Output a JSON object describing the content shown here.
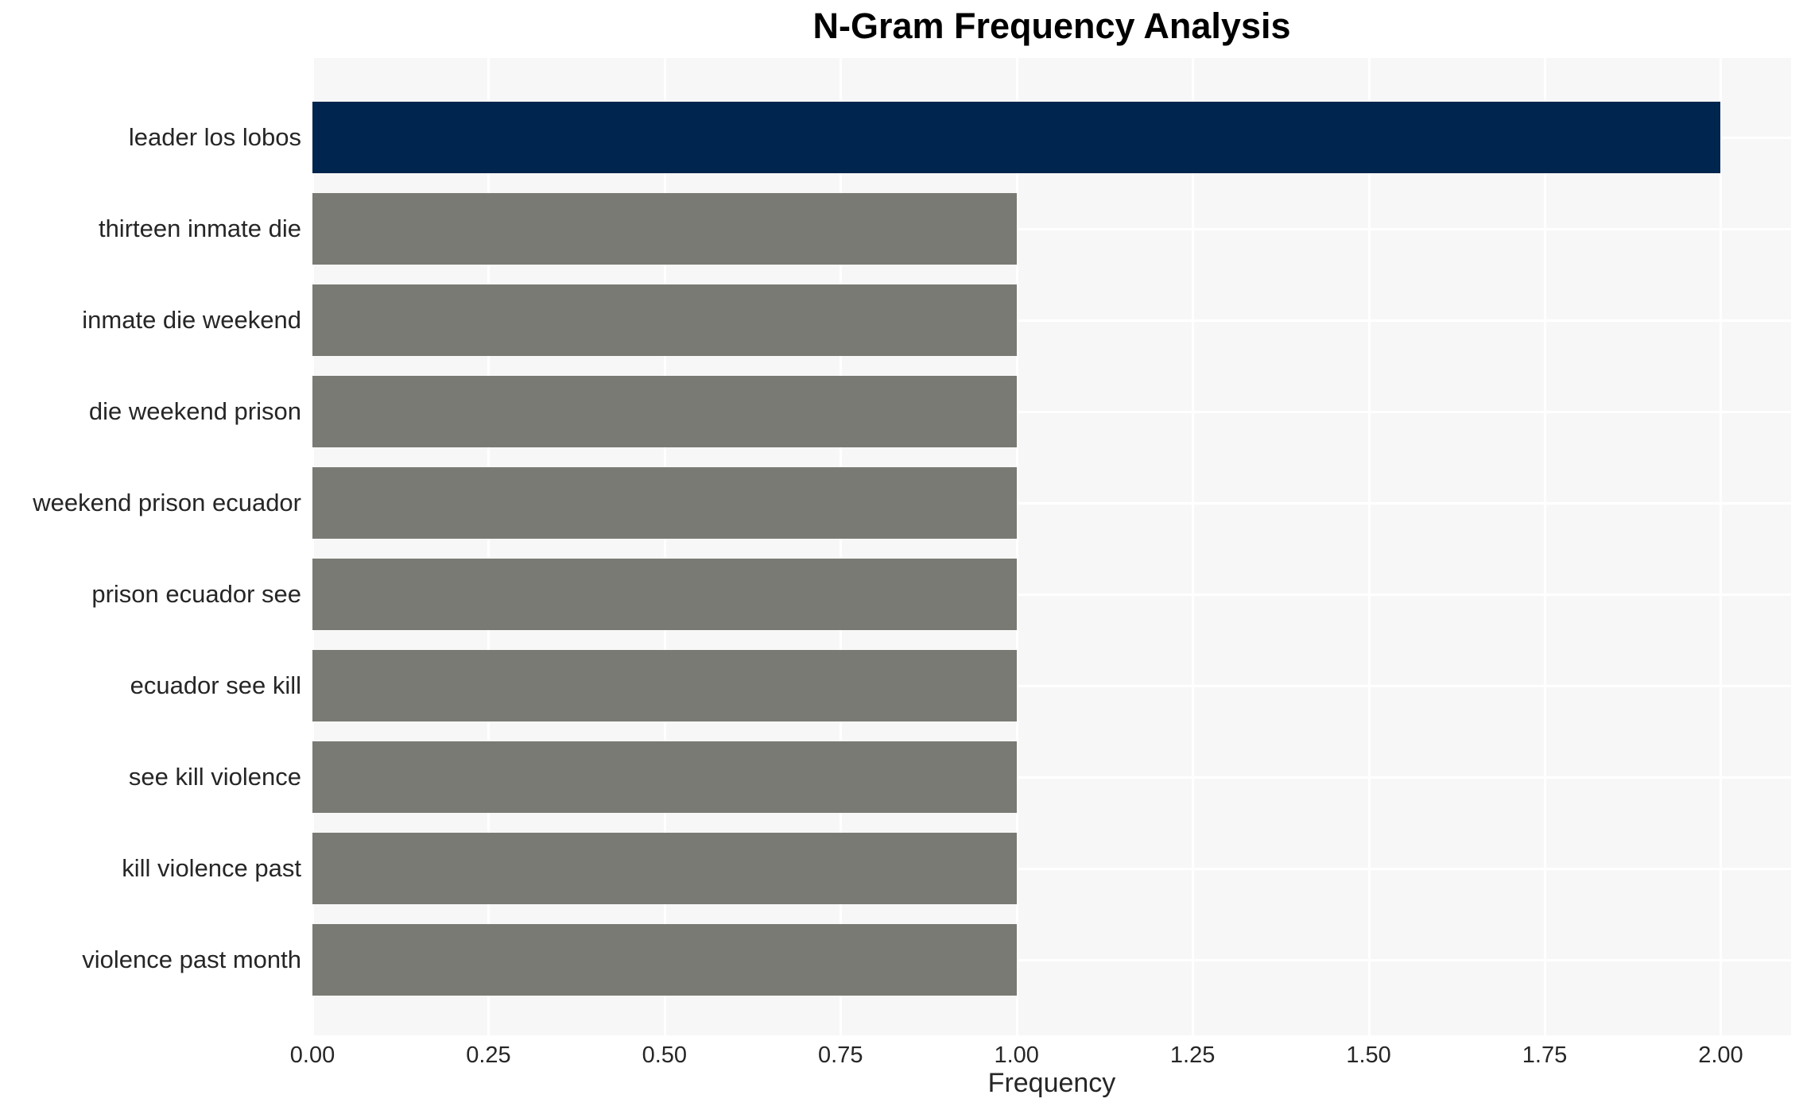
{
  "chart_data": {
    "type": "bar",
    "orientation": "horizontal",
    "title": "N-Gram Frequency Analysis",
    "xlabel": "Frequency",
    "ylabel": "",
    "categories": [
      "leader los lobos",
      "thirteen inmate die",
      "inmate die weekend",
      "die weekend prison",
      "weekend prison ecuador",
      "prison ecuador see",
      "ecuador see kill",
      "see kill violence",
      "kill violence past",
      "violence past month"
    ],
    "values": [
      2.0,
      1.0,
      1.0,
      1.0,
      1.0,
      1.0,
      1.0,
      1.0,
      1.0,
      1.0
    ],
    "bar_color_assignment": [
      "highlight",
      "default",
      "default",
      "default",
      "default",
      "default",
      "default",
      "default",
      "default",
      "default"
    ],
    "xlim": [
      0,
      2.1
    ],
    "xticks": [
      0.0,
      0.25,
      0.5,
      0.75,
      1.0,
      1.25,
      1.5,
      1.75,
      2.0
    ],
    "xtick_labels": [
      "0.00",
      "0.25",
      "0.50",
      "0.75",
      "1.00",
      "1.25",
      "1.50",
      "1.75",
      "2.00"
    ],
    "grid": true,
    "legend": false,
    "colors": {
      "highlight_bar": "#00254E",
      "default_bar": "#7A7A75",
      "plot_background": "#F7F7F7",
      "grid_line": "#FFFFFF",
      "tick_text": "#262626",
      "title_text": "#000000"
    }
  }
}
